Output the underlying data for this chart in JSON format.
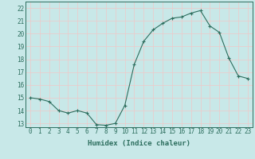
{
  "x": [
    0,
    1,
    2,
    3,
    4,
    5,
    6,
    7,
    8,
    9,
    10,
    11,
    12,
    13,
    14,
    15,
    16,
    17,
    18,
    19,
    20,
    21,
    22,
    23
  ],
  "y": [
    15.0,
    14.9,
    14.7,
    14.0,
    13.8,
    14.0,
    13.8,
    12.9,
    12.85,
    13.0,
    14.4,
    17.6,
    19.4,
    20.3,
    20.8,
    21.2,
    21.3,
    21.6,
    21.8,
    20.6,
    20.1,
    18.1,
    16.7,
    16.5
  ],
  "line_color": "#2d6e5e",
  "marker": "+",
  "marker_size": 3,
  "background_color": "#c8e8e8",
  "grid_color": "#f0c8c8",
  "xlabel": "Humidex (Indice chaleur)",
  "ylim": [
    12.7,
    22.5
  ],
  "xlim": [
    -0.5,
    23.5
  ],
  "yticks": [
    13,
    14,
    15,
    16,
    17,
    18,
    19,
    20,
    21,
    22
  ],
  "xticks": [
    0,
    1,
    2,
    3,
    4,
    5,
    6,
    7,
    8,
    9,
    10,
    11,
    12,
    13,
    14,
    15,
    16,
    17,
    18,
    19,
    20,
    21,
    22,
    23
  ],
  "label_fontsize": 6.5,
  "tick_fontsize": 5.5
}
